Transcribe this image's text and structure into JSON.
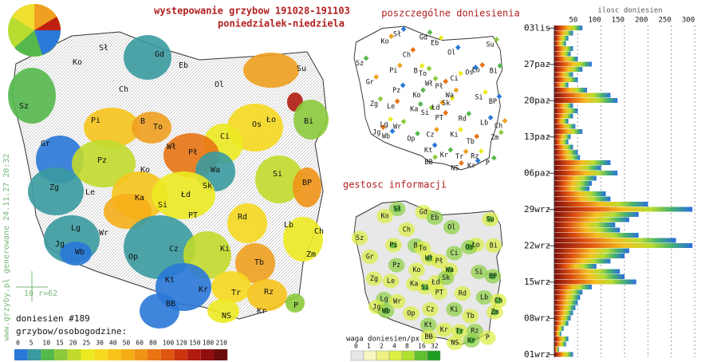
{
  "title": "wystepowanie grzybow 191028-191103",
  "subtitle": "poniedzialek-niedziela",
  "main_map": {
    "labels": [
      "Sł",
      "Gd",
      "Ko",
      "Eb",
      "Su",
      "Ch",
      "Ol",
      "Sz",
      "Pi",
      "B",
      "To",
      "Ło",
      "Os",
      "Bi",
      "Gr",
      "Ci",
      "Wł",
      "Pł",
      "Pz",
      "Ko",
      "Wa",
      "Si",
      "Zg",
      "Le",
      "BP",
      "Ka",
      "Łd",
      "Sk",
      "Si",
      "PT",
      "Lb",
      "Rd",
      "Ch",
      "Lg",
      "Wr",
      "Jg",
      "Wb",
      "Op",
      "Cz",
      "Ki",
      "Zm",
      "Tb",
      "Kt",
      "Kr",
      "Tr",
      "Rz",
      "BB",
      "NS",
      "Kr",
      "P"
    ],
    "scale_note": "10 r=62",
    "watermark": "www.grzyby.pl generowane 24.11.27 20:32",
    "report_count": "doniesien #189",
    "legend_title": "grzybow/osobogodzine:",
    "legend_ticks": [
      0,
      5,
      10,
      15,
      20,
      25,
      30,
      40,
      50,
      60,
      80,
      100,
      120,
      150,
      180,
      210
    ],
    "legend_colors": [
      "#2a78d8",
      "#3a9aa0",
      "#55b84c",
      "#8cca3c",
      "#c2da2c",
      "#ecea22",
      "#f6d820",
      "#f8c41c",
      "#f6ae18",
      "#f09418",
      "#e87414",
      "#de5610",
      "#cc3410",
      "#b01c10",
      "#901010",
      "#6c0c0c"
    ]
  },
  "reports_map": {
    "title": "poszczególne doniesienia"
  },
  "density_map": {
    "title": "gestosc informacji",
    "legend_title": "waga doniesien/px",
    "legend_ticks": [
      0,
      1,
      2,
      4,
      8,
      16,
      32
    ],
    "legend_colors": [
      "#e6e6e6",
      "#f6f6c0",
      "#eef080",
      "#dcee40",
      "#b0e030",
      "#60c030",
      "#1e9e20"
    ]
  },
  "histogram": {
    "axis_title": "ilosc doniesien",
    "xlim": [
      0,
      310
    ],
    "xticks": [
      50,
      100,
      150,
      200,
      250,
      300
    ],
    "dates": [
      "03lis",
      null,
      null,
      null,
      null,
      null,
      null,
      "27paz",
      null,
      null,
      null,
      null,
      null,
      null,
      "20paz",
      null,
      null,
      null,
      null,
      null,
      null,
      "13paz",
      null,
      null,
      null,
      null,
      null,
      null,
      "06paz",
      null,
      null,
      null,
      null,
      null,
      null,
      "29wrz",
      null,
      null,
      null,
      null,
      null,
      null,
      "22wrz",
      null,
      null,
      null,
      null,
      null,
      null,
      "15wrz",
      null,
      null,
      null,
      null,
      null,
      null,
      "08wrz",
      null,
      null,
      null,
      null,
      null,
      null,
      "01wrz"
    ],
    "values": [
      60,
      40,
      30,
      25,
      40,
      35,
      50,
      80,
      60,
      40,
      50,
      30,
      70,
      120,
      135,
      40,
      50,
      40,
      30,
      45,
      60,
      35,
      30,
      40,
      50,
      55,
      120,
      100,
      135,
      90,
      80,
      75,
      110,
      120,
      200,
      295,
      180,
      160,
      130,
      140,
      180,
      260,
      295,
      160,
      150,
      120,
      90,
      140,
      150,
      175,
      80,
      60,
      55,
      50,
      45,
      40,
      35,
      30,
      20,
      15,
      30,
      25,
      10,
      40
    ]
  }
}
